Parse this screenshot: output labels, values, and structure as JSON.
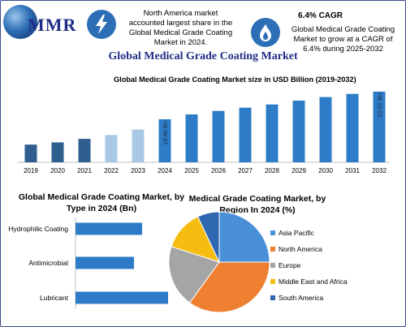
{
  "header": {
    "logo_text": "MMR",
    "info1": [
      "North America market",
      "accounted largest share in the",
      "Global Medical Grade Coating",
      "Market in 2024."
    ],
    "cagr_title": "6.4% CAGR",
    "info2": [
      "Global Medical Grade Coating",
      "Market to grow at a CAGR of",
      "6.4% during 2025-2032"
    ],
    "main_title": "Global Medical Grade Coating Market"
  },
  "colors": {
    "brand": "#1f2d86",
    "bar_dark": "#2f5f8f",
    "bar_main": "#2e7cc7",
    "bar_light": "#a9c8e6",
    "type_bar": "#2e7cc7",
    "pie": [
      "#4a90d9",
      "#ef7f31",
      "#a5a5a5",
      "#f5bd12",
      "#2f68b0"
    ]
  },
  "chart_data": [
    {
      "type": "bar",
      "title": "Global Medical Grade Coating Market size in USD Billion (2019-2032)",
      "categories": [
        "2019",
        "2020",
        "2021",
        "2022",
        "2023",
        "2024",
        "2025",
        "2026",
        "2027",
        "2028",
        "2029",
        "2030",
        "2031",
        "2032"
      ],
      "values": [
        5.5,
        6.2,
        7.3,
        8.5,
        10.2,
        13.4,
        14.9,
        16.0,
        17.0,
        18.0,
        19.2,
        20.3,
        21.3,
        22.01
      ],
      "data_labels": {
        "2024": "13.40 Bn",
        "2032": "22.01 Bn"
      },
      "ylim": [
        0,
        24
      ],
      "grid": false
    },
    {
      "type": "bar",
      "orientation": "horizontal",
      "title": "Global Medical Grade Coating Market, by Type in 2024 (Bn)",
      "categories": [
        "Hydrophilic Coating",
        "Antimicrobial",
        "Lubricant"
      ],
      "values": [
        4.1,
        3.6,
        5.7
      ],
      "xlim": [
        0,
        7
      ]
    },
    {
      "type": "pie",
      "title": "Medical Grade Coating Market, by Region In 2024 (%)",
      "labels": [
        "Asia Pacific",
        "North America",
        "Europe",
        "Middle East and Africa",
        "South America"
      ],
      "values": [
        25,
        35,
        20,
        13,
        7
      ],
      "legend": "right"
    }
  ]
}
